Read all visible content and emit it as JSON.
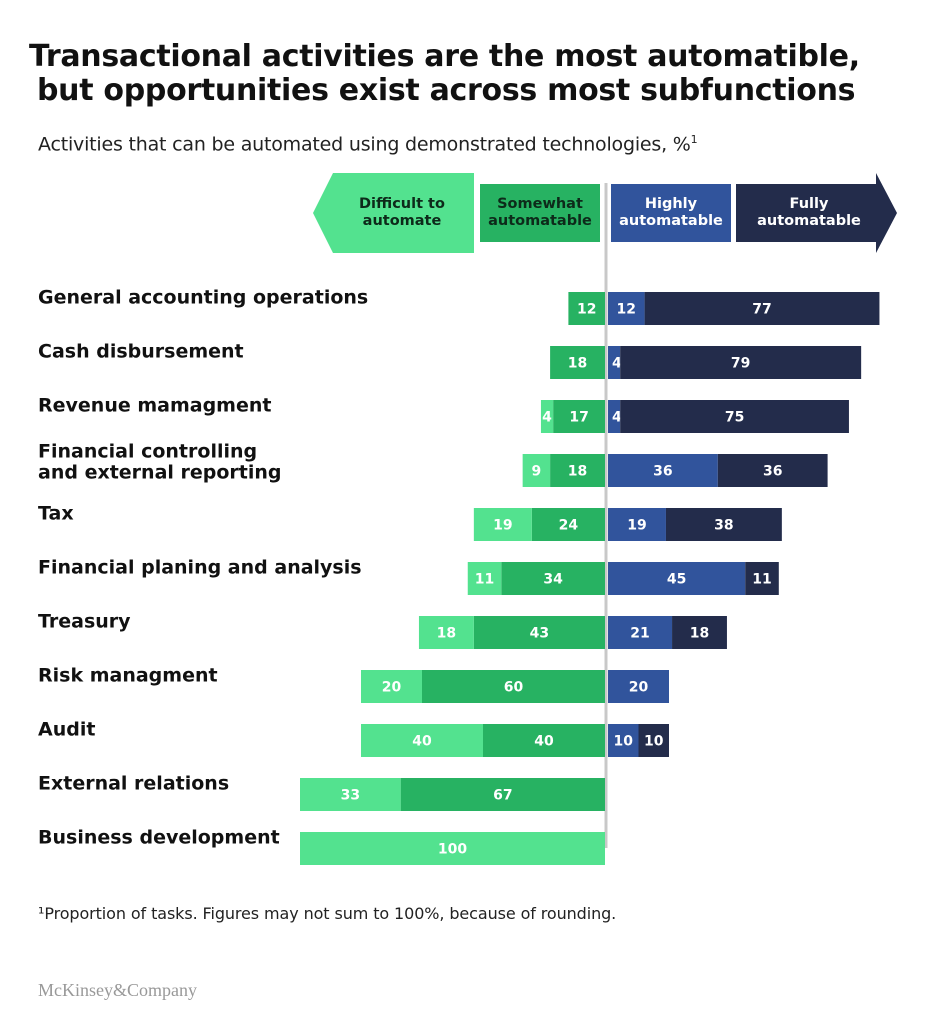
{
  "header": {
    "title_line1": "Transactional activities are the most automatible,",
    "title_line2": "but opportunities exist across most subfunctions",
    "subtitle": "Activities that can be automated using demonstrated technologies, %",
    "subtitle_sup": "1"
  },
  "footer": {
    "footnote": "¹Proportion of tasks. Figures may not sum to 100%, because of rounding.",
    "logo": "McKinsey&Company"
  },
  "colors": {
    "difficult": "#53e28f",
    "somewhat": "#27b262",
    "highly": "#31549c",
    "fully": "#232c4b",
    "divider": "#c8c8c8"
  },
  "chart_data": {
    "type": "bar",
    "orientation": "horizontal-diverging",
    "categories_headers": [
      {
        "key": "difficult",
        "lines": [
          "Difficult to",
          "automate"
        ]
      },
      {
        "key": "somewhat",
        "lines": [
          "Somewhat",
          "automatable"
        ]
      },
      {
        "key": "highly",
        "lines": [
          "Highly",
          "automatable"
        ]
      },
      {
        "key": "fully",
        "lines": [
          "Fully",
          "automatable"
        ]
      }
    ],
    "rows": [
      {
        "label": [
          "General accounting operations"
        ],
        "difficult": null,
        "somewhat": 12,
        "highly": 12,
        "fully": 77
      },
      {
        "label": [
          "Cash disbursement"
        ],
        "difficult": null,
        "somewhat": 18,
        "highly": 4,
        "fully": 79
      },
      {
        "label": [
          "Revenue mamagment"
        ],
        "difficult": 4,
        "somewhat": 17,
        "highly": 4,
        "fully": 75
      },
      {
        "label": [
          "Financial controlling",
          "and external reporting"
        ],
        "difficult": 9,
        "somewhat": 18,
        "highly": 36,
        "fully": 36
      },
      {
        "label": [
          "Tax"
        ],
        "difficult": 19,
        "somewhat": 24,
        "highly": 19,
        "fully": 38
      },
      {
        "label": [
          "Financial planing and analysis"
        ],
        "difficult": 11,
        "somewhat": 34,
        "highly": 45,
        "fully": 11
      },
      {
        "label": [
          "Treasury"
        ],
        "difficult": 18,
        "somewhat": 43,
        "highly": 21,
        "fully": 18
      },
      {
        "label": [
          "Risk managment"
        ],
        "difficult": 20,
        "somewhat": 60,
        "highly": 20,
        "fully": null
      },
      {
        "label": [
          "Audit"
        ],
        "difficult": 40,
        "somewhat": 40,
        "highly": 10,
        "fully": 10
      },
      {
        "label": [
          "External relations"
        ],
        "difficult": 33,
        "somewhat": 67,
        "highly": null,
        "fully": null
      },
      {
        "label": [
          "Business development"
        ],
        "difficult": 100,
        "somewhat": null,
        "highly": null,
        "fully": null
      }
    ]
  }
}
